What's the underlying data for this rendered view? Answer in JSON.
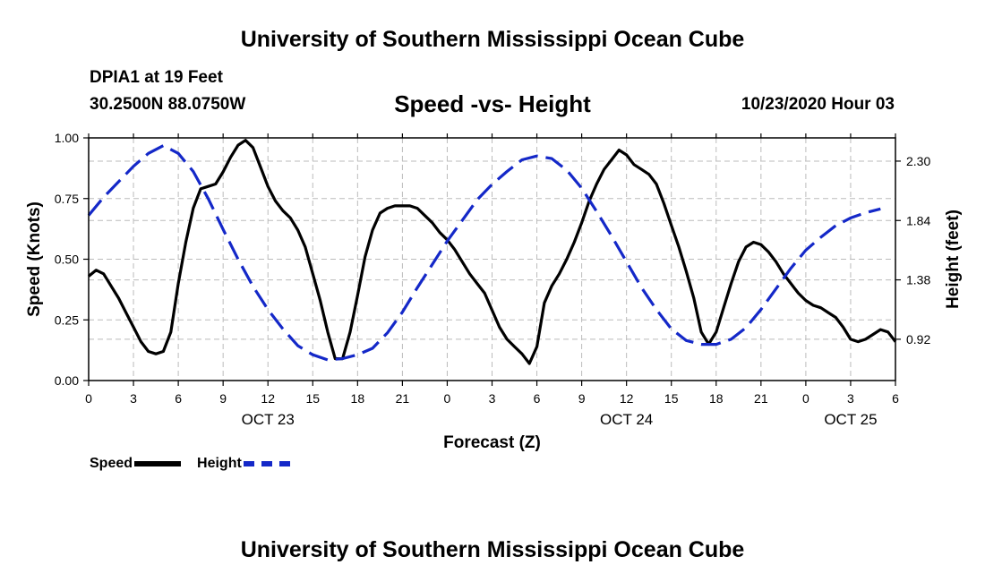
{
  "header": {
    "title": "University of Southern Mississippi Ocean Cube",
    "station": "DPIA1 at 19 Feet",
    "coords": "30.2500N 88.0750W",
    "chart_title": "Speed -vs- Height",
    "date": "10/23/2020 Hour 03"
  },
  "footer": {
    "title": "University of Southern Mississippi Ocean Cube"
  },
  "legend": {
    "speed_label": "Speed",
    "height_label": "Height"
  },
  "colors": {
    "speed": "#000000",
    "height": "#1428c8",
    "grid": "#bbbbbb"
  },
  "chart_data": {
    "type": "line",
    "title": "Speed -vs- Height",
    "xlabel": "Forecast (Z)",
    "ylabel": "Speed (Knots)",
    "y2label": "Height (feet)",
    "xlim": [
      0,
      54
    ],
    "ylim": [
      0,
      1
    ],
    "y2lim": [
      0.6,
      2.48
    ],
    "x_ticks": [
      0,
      3,
      6,
      9,
      12,
      15,
      18,
      21,
      24,
      27,
      30,
      33,
      36,
      39,
      42,
      45,
      48,
      51,
      54
    ],
    "x_tick_labels": [
      "0",
      "3",
      "6",
      "9",
      "12",
      "15",
      "18",
      "21",
      "0",
      "3",
      "6",
      "9",
      "12",
      "15",
      "18",
      "21",
      "0",
      "3",
      "6"
    ],
    "date_labels": [
      {
        "x": 12,
        "label": "OCT 23"
      },
      {
        "x": 36,
        "label": "OCT 24"
      },
      {
        "x": 51,
        "label": "OCT 25"
      }
    ],
    "y_ticks": [
      0,
      0.25,
      0.5,
      0.75,
      1.0
    ],
    "y_tick_labels": [
      "0.00",
      "0.25",
      "0.50",
      "0.75",
      "1.00"
    ],
    "y2_ticks": [
      0.92,
      1.38,
      1.84,
      2.3
    ],
    "y2_tick_labels": [
      "0.92",
      "1.38",
      "1.84",
      "2.30"
    ],
    "grid": true,
    "series": [
      {
        "name": "Speed",
        "axis": "left",
        "x": [
          0,
          0.5,
          1,
          1.5,
          2,
          2.5,
          3,
          3.5,
          4,
          4.5,
          5,
          5.5,
          6,
          6.5,
          7,
          7.5,
          8,
          8.5,
          9,
          9.5,
          10,
          10.5,
          11,
          11.5,
          12,
          12.5,
          13,
          13.5,
          14,
          14.5,
          15,
          15.5,
          16,
          16.5,
          17,
          17.5,
          18,
          18.5,
          19,
          19.5,
          20,
          20.5,
          21,
          21.5,
          22,
          22.5,
          23,
          23.5,
          24,
          24.5,
          25,
          25.5,
          26,
          26.5,
          27,
          27.5,
          28,
          28.5,
          29,
          29.5,
          30,
          30.5,
          31,
          31.5,
          32,
          32.5,
          33,
          33.5,
          34,
          34.5,
          35,
          35.5,
          36,
          36.5,
          37,
          37.5,
          38,
          38.5,
          39,
          39.5,
          40,
          40.5,
          41,
          41.5,
          42,
          42.5,
          43,
          43.5,
          44,
          44.5,
          45,
          45.5,
          46,
          46.5,
          47,
          47.5,
          48,
          48.5,
          49,
          49.5,
          50,
          50.5,
          51,
          51.5,
          52,
          52.5,
          53,
          53.5,
          54
        ],
        "values": [
          0.43,
          0.455,
          0.44,
          0.39,
          0.34,
          0.28,
          0.22,
          0.16,
          0.12,
          0.11,
          0.12,
          0.2,
          0.4,
          0.57,
          0.71,
          0.79,
          0.8,
          0.81,
          0.86,
          0.92,
          0.97,
          0.99,
          0.96,
          0.88,
          0.8,
          0.74,
          0.7,
          0.67,
          0.62,
          0.55,
          0.44,
          0.33,
          0.2,
          0.09,
          0.09,
          0.2,
          0.35,
          0.51,
          0.62,
          0.69,
          0.71,
          0.72,
          0.72,
          0.72,
          0.71,
          0.68,
          0.65,
          0.61,
          0.58,
          0.54,
          0.49,
          0.44,
          0.4,
          0.36,
          0.29,
          0.22,
          0.17,
          0.14,
          0.11,
          0.07,
          0.14,
          0.32,
          0.39,
          0.44,
          0.5,
          0.57,
          0.65,
          0.74,
          0.81,
          0.87,
          0.91,
          0.95,
          0.93,
          0.89,
          0.87,
          0.85,
          0.81,
          0.73,
          0.64,
          0.55,
          0.45,
          0.34,
          0.2,
          0.15,
          0.2,
          0.3,
          0.4,
          0.49,
          0.55,
          0.57,
          0.56,
          0.53,
          0.49,
          0.44,
          0.4,
          0.36,
          0.33,
          0.31,
          0.3,
          0.28,
          0.26,
          0.22,
          0.17,
          0.16,
          0.17,
          0.19,
          0.21,
          0.2,
          0.16
        ]
      },
      {
        "name": "Height",
        "axis": "right",
        "x": [
          0,
          1,
          2,
          3,
          4,
          5,
          6,
          7,
          8,
          9,
          10,
          11,
          12,
          13,
          14,
          15,
          16,
          17,
          18,
          19,
          20,
          21,
          22,
          23,
          24,
          25,
          26,
          27,
          28,
          29,
          30,
          31,
          32,
          33,
          34,
          35,
          36,
          37,
          38,
          39,
          40,
          41,
          42,
          43,
          44,
          45,
          46,
          47,
          48,
          49,
          50,
          51,
          52,
          53
        ],
        "values": [
          1.88,
          2.02,
          2.14,
          2.26,
          2.36,
          2.42,
          2.36,
          2.22,
          2.01,
          1.77,
          1.54,
          1.33,
          1.15,
          1.0,
          0.87,
          0.8,
          0.76,
          0.77,
          0.8,
          0.85,
          0.97,
          1.13,
          1.32,
          1.5,
          1.68,
          1.84,
          2.0,
          2.12,
          2.22,
          2.31,
          2.34,
          2.32,
          2.23,
          2.09,
          1.91,
          1.72,
          1.52,
          1.32,
          1.15,
          1.0,
          0.91,
          0.88,
          0.88,
          0.92,
          1.01,
          1.15,
          1.31,
          1.47,
          1.61,
          1.71,
          1.8,
          1.86,
          1.9,
          1.93
        ]
      }
    ]
  }
}
